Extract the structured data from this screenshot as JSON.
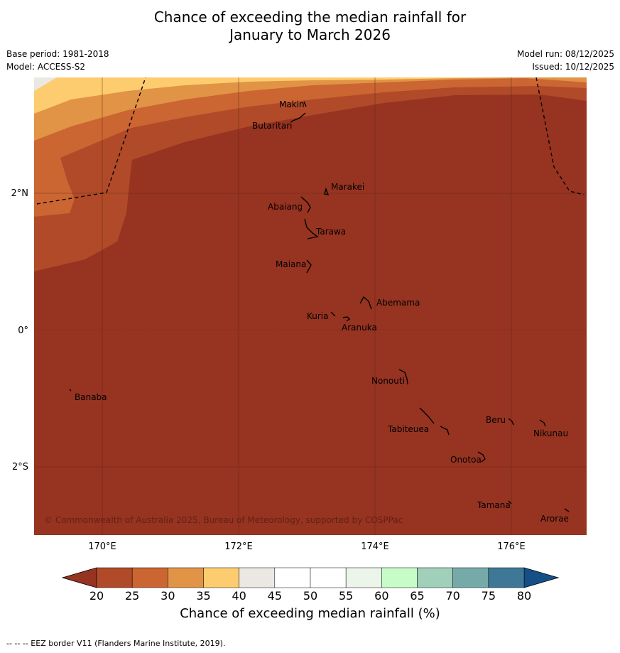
{
  "title": {
    "line1": "Chance of exceeding the median rainfall for",
    "line2": "January to March 2026"
  },
  "meta": {
    "base_period": "Base period: 1981-2018",
    "model": "Model: ACCESS-S2",
    "model_run": "Model run: 08/12/2025",
    "issued": "Issued: 10/12/2025"
  },
  "map": {
    "copyright": "© Commonwealth of Australia 2025, Bureau of Meteorology, supported by COSPPac",
    "background_color": "#973321",
    "lon_ticks": [
      "170°E",
      "172°E",
      "174°E",
      "176°E"
    ],
    "lat_ticks": [
      "2°N",
      "0°",
      "2°S"
    ],
    "places": [
      {
        "name": "Makin"
      },
      {
        "name": "Butaritari"
      },
      {
        "name": "Marakei"
      },
      {
        "name": "Abaiang"
      },
      {
        "name": "Tarawa"
      },
      {
        "name": "Maiana"
      },
      {
        "name": "Abemama"
      },
      {
        "name": "Kuria"
      },
      {
        "name": "Aranuka"
      },
      {
        "name": "Nonouti"
      },
      {
        "name": "Banaba"
      },
      {
        "name": "Beru"
      },
      {
        "name": "Tabiteuea"
      },
      {
        "name": "Nikunau"
      },
      {
        "name": "Onotoa"
      },
      {
        "name": "Tamana"
      },
      {
        "name": "Arorae"
      }
    ]
  },
  "colorbar": {
    "ticks": [
      "20",
      "25",
      "30",
      "35",
      "40",
      "45",
      "50",
      "55",
      "60",
      "65",
      "70",
      "75",
      "80"
    ],
    "colors": [
      "#b04a28",
      "#cb6532",
      "#e19346",
      "#fdcc6e",
      "#ebe8e4",
      "#ffffff",
      "#ffffff",
      "#ebf5ea",
      "#c7fbc8",
      "#a1d0ba",
      "#75aaa9",
      "#3f7797"
    ],
    "under_color": "#973321",
    "over_color": "#154f87",
    "label": "Chance of exceeding median rainfall (%)"
  },
  "footnote": "--  --  -- EEZ border V11 (Flanders Marine Institute, 2019)."
}
